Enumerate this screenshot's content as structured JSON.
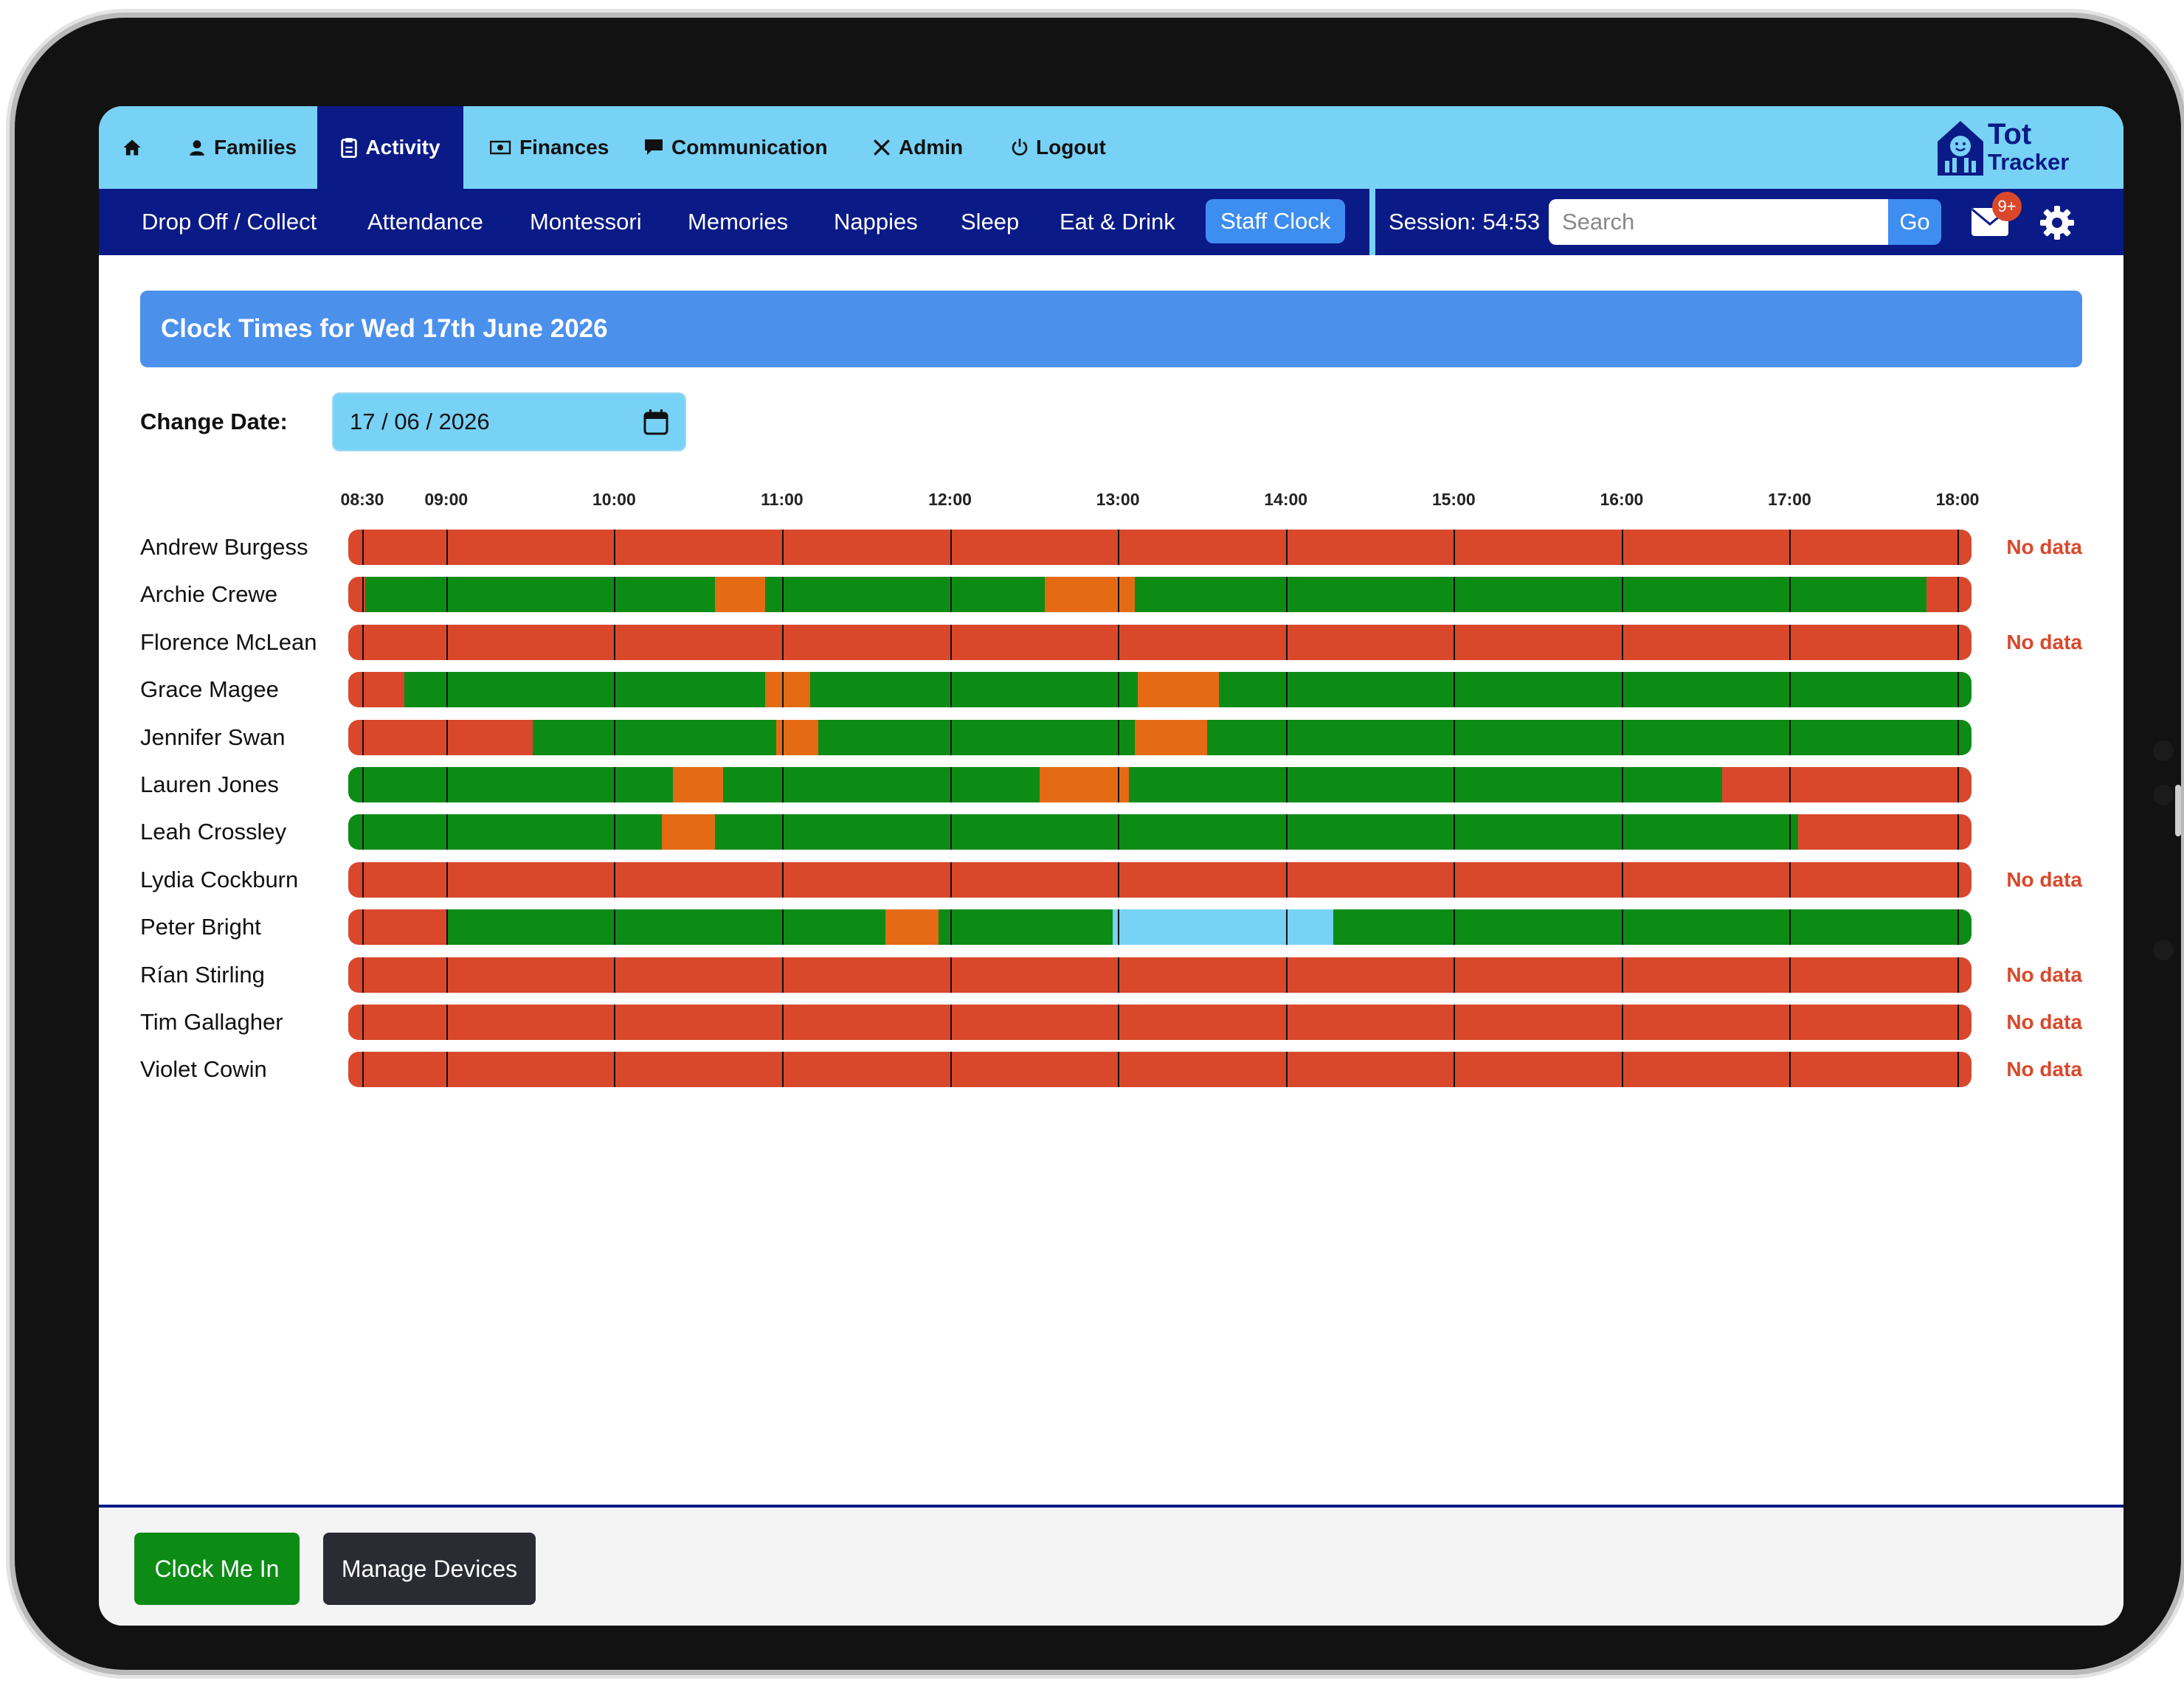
{
  "top_nav": [
    {
      "label": "",
      "icon": "home-icon",
      "active": false
    },
    {
      "label": "Families",
      "icon": "user-icon",
      "active": false
    },
    {
      "label": "Activity",
      "icon": "clipboard-icon",
      "active": true
    },
    {
      "label": "Finances",
      "icon": "cash-icon",
      "active": false
    },
    {
      "label": "Communication",
      "icon": "chat-icon",
      "active": false
    },
    {
      "label": "Admin",
      "icon": "tools-icon",
      "active": false
    },
    {
      "label": "Logout",
      "icon": "power-icon",
      "active": false
    }
  ],
  "logo": {
    "line1": "Tot",
    "line2": "Tracker"
  },
  "sub_nav": [
    {
      "label": "Drop Off / Collect",
      "active": false
    },
    {
      "label": "Attendance",
      "active": false
    },
    {
      "label": "Montessori",
      "active": false
    },
    {
      "label": "Memories",
      "active": false
    },
    {
      "label": "Nappies",
      "active": false
    },
    {
      "label": "Sleep",
      "active": false
    },
    {
      "label": "Eat & Drink",
      "active": false
    },
    {
      "label": "Staff Clock",
      "active": true
    }
  ],
  "session": "Session: 54:53",
  "search": {
    "placeholder": "Search",
    "button": "Go"
  },
  "notifications": {
    "badge": "9+",
    "icon": "mail-icon"
  },
  "settings": {
    "icon": "gear-icon"
  },
  "banner_title": "Clock Times for Wed 17th June 2026",
  "change_date": {
    "label": "Change Date:",
    "value": "17 / 06 / 2026",
    "icon": "calendar-icon"
  },
  "timeline": {
    "start": "08:30",
    "end": "18:05",
    "ticks": [
      "08:30",
      "09:00",
      "10:00",
      "11:00",
      "12:00",
      "13:00",
      "14:00",
      "15:00",
      "16:00",
      "17:00",
      "18:00"
    ],
    "colors": {
      "absent": "#d9482b",
      "working": "#0c8c15",
      "break": "#e46b14",
      "other": "#77d2f6"
    },
    "no_data_label": "No data",
    "staff": [
      {
        "name": "Andrew Burgess",
        "no_data": true,
        "segments": [
          [
            "08:25",
            "18:05",
            "absent"
          ]
        ]
      },
      {
        "name": "Archie Crewe",
        "no_data": false,
        "segments": [
          [
            "08:25",
            "08:31",
            "absent"
          ],
          [
            "08:31",
            "10:36",
            "working"
          ],
          [
            "10:36",
            "10:54",
            "break"
          ],
          [
            "10:54",
            "12:34",
            "working"
          ],
          [
            "12:34",
            "13:06",
            "break"
          ],
          [
            "13:06",
            "17:49",
            "working"
          ],
          [
            "17:49",
            "18:05",
            "absent"
          ]
        ]
      },
      {
        "name": "Florence McLean",
        "no_data": true,
        "segments": [
          [
            "08:25",
            "18:05",
            "absent"
          ]
        ]
      },
      {
        "name": "Grace Magee",
        "no_data": false,
        "segments": [
          [
            "08:25",
            "08:45",
            "absent"
          ],
          [
            "08:45",
            "10:54",
            "working"
          ],
          [
            "10:54",
            "11:10",
            "break"
          ],
          [
            "11:10",
            "13:07",
            "working"
          ],
          [
            "13:07",
            "13:36",
            "break"
          ],
          [
            "13:36",
            "18:05",
            "working"
          ]
        ]
      },
      {
        "name": "Jennifer Swan",
        "no_data": false,
        "segments": [
          [
            "08:25",
            "09:31",
            "absent"
          ],
          [
            "09:31",
            "10:58",
            "working"
          ],
          [
            "10:58",
            "11:13",
            "break"
          ],
          [
            "11:13",
            "13:06",
            "working"
          ],
          [
            "13:06",
            "13:32",
            "break"
          ],
          [
            "13:32",
            "18:05",
            "working"
          ]
        ]
      },
      {
        "name": "Lauren Jones",
        "no_data": false,
        "segments": [
          [
            "08:25",
            "10:21",
            "working"
          ],
          [
            "10:21",
            "10:39",
            "break"
          ],
          [
            "10:39",
            "12:32",
            "working"
          ],
          [
            "12:32",
            "13:04",
            "break"
          ],
          [
            "13:04",
            "16:36",
            "working"
          ],
          [
            "16:36",
            "18:05",
            "absent"
          ]
        ]
      },
      {
        "name": "Leah Crossley",
        "no_data": false,
        "segments": [
          [
            "08:25",
            "10:17",
            "working"
          ],
          [
            "10:17",
            "10:36",
            "break"
          ],
          [
            "10:36",
            "17:03",
            "working"
          ],
          [
            "17:03",
            "18:05",
            "absent"
          ]
        ]
      },
      {
        "name": "Lydia Cockburn",
        "no_data": true,
        "segments": [
          [
            "08:25",
            "18:05",
            "absent"
          ]
        ]
      },
      {
        "name": "Peter Bright",
        "no_data": false,
        "segments": [
          [
            "08:25",
            "09:00",
            "absent"
          ],
          [
            "09:00",
            "11:37",
            "working"
          ],
          [
            "11:37",
            "11:56",
            "break"
          ],
          [
            "11:56",
            "12:58",
            "working"
          ],
          [
            "12:58",
            "14:17",
            "other"
          ],
          [
            "14:17",
            "18:05",
            "working"
          ]
        ]
      },
      {
        "name": "Rían Stirling",
        "no_data": true,
        "segments": [
          [
            "08:25",
            "18:05",
            "absent"
          ]
        ]
      },
      {
        "name": "Tim Gallagher",
        "no_data": true,
        "segments": [
          [
            "08:25",
            "18:05",
            "absent"
          ]
        ]
      },
      {
        "name": "Violet Cowin",
        "no_data": true,
        "segments": [
          [
            "08:25",
            "18:05",
            "absent"
          ]
        ]
      }
    ]
  },
  "footer": {
    "clock_in_label": "Clock Me In",
    "clock_in_color": "#0c8c15",
    "manage_devices_label": "Manage Devices",
    "manage_devices_color": "#2b2b33"
  }
}
